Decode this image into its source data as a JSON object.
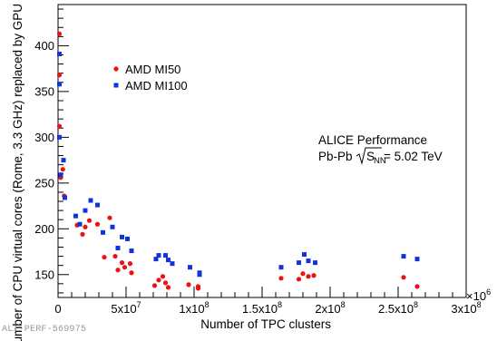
{
  "chart_data": {
    "type": "scatter",
    "xlabel": "Number of TPC clusters",
    "ylabel": "Number of CPU virtual cores (Rome, 3.3 GHz) replaced by GPU",
    "xlim": [
      0,
      300000000
    ],
    "ylim": [
      125,
      445
    ],
    "x_multiplier_label": "×10",
    "x_multiplier_exp": "6",
    "x_ticks": [
      {
        "value": 0,
        "label": "0"
      },
      {
        "value": 50000000,
        "label": "5x10",
        "exp": "7"
      },
      {
        "value": 100000000,
        "label": "1x10",
        "exp": "8"
      },
      {
        "value": 150000000,
        "label": "1.5x10",
        "exp": "8"
      },
      {
        "value": 200000000,
        "label": "2x10",
        "exp": "8"
      },
      {
        "value": 250000000,
        "label": "2.5x10",
        "exp": "8"
      },
      {
        "value": 300000000,
        "label": "3x10",
        "exp": "8"
      }
    ],
    "y_ticks": [
      150,
      200,
      250,
      300,
      350,
      400
    ],
    "legend_position": "top-left",
    "series": [
      {
        "name": "AMD MI50",
        "color": "#ee1111",
        "marker": "circle",
        "points": [
          [
            0,
            413
          ],
          [
            0,
            368
          ],
          [
            0,
            312
          ],
          [
            2000000,
            256
          ],
          [
            3500000,
            265
          ],
          [
            4500000,
            236
          ],
          [
            14000000,
            204
          ],
          [
            18000000,
            194
          ],
          [
            20000000,
            202
          ],
          [
            23000000,
            209
          ],
          [
            29000000,
            205
          ],
          [
            34000000,
            169
          ],
          [
            38000000,
            212
          ],
          [
            42000000,
            170
          ],
          [
            44000000,
            155
          ],
          [
            47000000,
            163
          ],
          [
            49000000,
            158
          ],
          [
            53000000,
            162
          ],
          [
            54000000,
            152
          ],
          [
            71000000,
            138
          ],
          [
            74000000,
            144
          ],
          [
            77000000,
            148
          ],
          [
            79000000,
            141
          ],
          [
            81000000,
            136
          ],
          [
            96000000,
            139
          ],
          [
            103000000,
            137
          ],
          [
            103000000,
            135
          ],
          [
            164000000,
            146
          ],
          [
            177000000,
            145
          ],
          [
            180000000,
            151
          ],
          [
            184000000,
            148
          ],
          [
            188000000,
            149
          ],
          [
            254000000,
            147
          ],
          [
            264000000,
            137
          ]
        ]
      },
      {
        "name": "AMD MI100",
        "color": "#1133dd",
        "marker": "square",
        "points": [
          [
            0,
            391
          ],
          [
            0,
            358
          ],
          [
            0,
            300
          ],
          [
            2000000,
            259
          ],
          [
            4000000,
            275
          ],
          [
            5000000,
            234
          ],
          [
            13000000,
            214
          ],
          [
            16000000,
            205
          ],
          [
            20000000,
            220
          ],
          [
            24000000,
            231
          ],
          [
            29000000,
            226
          ],
          [
            33000000,
            196
          ],
          [
            40000000,
            202
          ],
          [
            44000000,
            179
          ],
          [
            47000000,
            191
          ],
          [
            51000000,
            189
          ],
          [
            54000000,
            176
          ],
          [
            72000000,
            167
          ],
          [
            74000000,
            171
          ],
          [
            79000000,
            171
          ],
          [
            81000000,
            166
          ],
          [
            84000000,
            162
          ],
          [
            97000000,
            158
          ],
          [
            104000000,
            152
          ],
          [
            104000000,
            150
          ],
          [
            164000000,
            158
          ],
          [
            177000000,
            163
          ],
          [
            181000000,
            172
          ],
          [
            184000000,
            165
          ],
          [
            189000000,
            163
          ],
          [
            254000000,
            170
          ],
          [
            264000000,
            167
          ]
        ]
      }
    ],
    "annotation": {
      "line1": "ALICE Performance",
      "line2_prefix": "Pb-Pb",
      "line2_sqrt_var": "S",
      "line2_sqrt_sub": "NN",
      "line2_suffix": " = 5.02 TeV"
    }
  },
  "figure_id": "ALI-PERF-569975"
}
